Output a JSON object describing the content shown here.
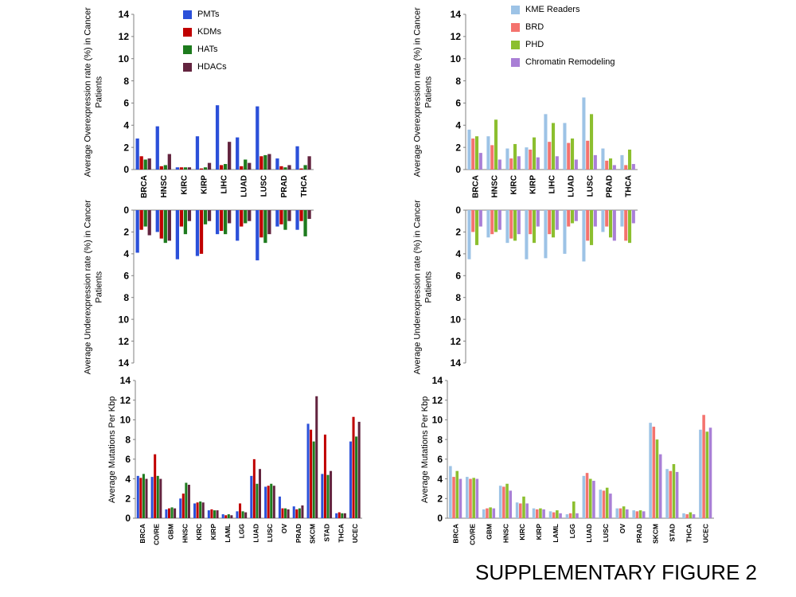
{
  "figure_label": "SUPPLEMENTARY FIGURE 2",
  "chart_data": [
    {
      "id": "overexpression-left",
      "type": "bar",
      "ylabel": "Average Overexpression rate (%) in Cancer Patients",
      "ylim": [
        0,
        14
      ],
      "ytick_step": 2,
      "inverted": false,
      "show_xlabels": true,
      "legend_position": "top-inside",
      "categories": [
        "BRCA",
        "HNSC",
        "KIRC",
        "KIRP",
        "LIHC",
        "LUAD",
        "LUSC",
        "PRAD",
        "THCA"
      ],
      "series": [
        {
          "name": "PMTs",
          "color": "#2B50D9",
          "values": [
            2.8,
            3.9,
            0.2,
            3.0,
            5.8,
            2.9,
            5.7,
            1.0,
            2.1
          ]
        },
        {
          "name": "KDMs",
          "color": "#C00000",
          "values": [
            1.2,
            0.3,
            0.2,
            0.1,
            0.4,
            0.3,
            1.2,
            0.3,
            0.1
          ]
        },
        {
          "name": "HATs",
          "color": "#1E7B1E",
          "values": [
            0.9,
            0.4,
            0.2,
            0.2,
            0.5,
            0.9,
            1.3,
            0.2,
            0.4
          ]
        },
        {
          "name": "HDACs",
          "color": "#63243F",
          "values": [
            1.0,
            1.4,
            0.2,
            0.6,
            2.5,
            0.6,
            1.4,
            0.4,
            1.2
          ]
        }
      ]
    },
    {
      "id": "underexpression-left",
      "type": "bar",
      "ylabel": "Average Underexpression rate (%) in Cancer Patients",
      "ylim": [
        0,
        14
      ],
      "ytick_step": 2,
      "inverted": true,
      "show_xlabels": false,
      "categories": [
        "BRCA",
        "HNSC",
        "KIRC",
        "KIRP",
        "LIHC",
        "LUAD",
        "LUSC",
        "PRAD",
        "THCA"
      ],
      "series": [
        {
          "name": "PMTs",
          "color": "#2B50D9",
          "values": [
            3.9,
            2.0,
            4.5,
            4.2,
            2.2,
            2.8,
            4.6,
            1.5,
            1.8
          ]
        },
        {
          "name": "KDMs",
          "color": "#C00000",
          "values": [
            1.8,
            2.6,
            1.5,
            4.0,
            1.9,
            1.5,
            2.5,
            1.3,
            1.0
          ]
        },
        {
          "name": "HATs",
          "color": "#1E7B1E",
          "values": [
            1.5,
            3.0,
            2.2,
            1.3,
            2.2,
            1.2,
            3.0,
            1.8,
            2.4
          ]
        },
        {
          "name": "HDACs",
          "color": "#63243F",
          "values": [
            2.3,
            2.8,
            1.0,
            1.0,
            1.2,
            1.0,
            2.2,
            1.0,
            0.8
          ]
        }
      ]
    },
    {
      "id": "overexpression-right",
      "type": "bar",
      "ylabel": "Average Overexpression rate (%) in Cancer Patients",
      "ylim": [
        0,
        14
      ],
      "ytick_step": 2,
      "inverted": false,
      "show_xlabels": true,
      "legend_position": "top-inside",
      "categories": [
        "BRCA",
        "HNSC",
        "KIRC",
        "KIRP",
        "LIHC",
        "LUAD",
        "LUSC",
        "PRAD",
        "THCA"
      ],
      "series": [
        {
          "name": "KME Readers",
          "color": "#9DC3E6",
          "values": [
            3.6,
            3.0,
            1.9,
            2.0,
            5.0,
            4.2,
            6.5,
            1.9,
            1.3
          ]
        },
        {
          "name": "BRD",
          "color": "#F4736E",
          "values": [
            2.8,
            2.2,
            1.0,
            1.8,
            2.5,
            2.4,
            2.6,
            0.8,
            0.4
          ]
        },
        {
          "name": "PHD",
          "color": "#8CBF2F",
          "values": [
            3.0,
            4.5,
            2.3,
            2.9,
            4.2,
            2.8,
            5.0,
            1.0,
            1.8
          ]
        },
        {
          "name": "Chromatin Remodeling",
          "color": "#A97FD6",
          "values": [
            1.5,
            0.9,
            1.2,
            1.1,
            1.2,
            0.9,
            1.3,
            0.4,
            0.5
          ]
        }
      ]
    },
    {
      "id": "underexpression-right",
      "type": "bar",
      "ylabel": "Average Underexpression rate (%) in Cancer Patients",
      "ylim": [
        0,
        14
      ],
      "ytick_step": 2,
      "inverted": true,
      "show_xlabels": false,
      "categories": [
        "BRCA",
        "HNSC",
        "KIRC",
        "KIRP",
        "LIHC",
        "LUAD",
        "LUSC",
        "PRAD",
        "THCA"
      ],
      "series": [
        {
          "name": "KME Readers",
          "color": "#9DC3E6",
          "values": [
            4.5,
            2.5,
            3.0,
            4.5,
            4.4,
            4.0,
            4.7,
            2.0,
            1.5
          ]
        },
        {
          "name": "BRD",
          "color": "#F4736E",
          "values": [
            2.0,
            2.2,
            2.6,
            2.2,
            2.2,
            1.5,
            2.8,
            1.5,
            2.8
          ]
        },
        {
          "name": "PHD",
          "color": "#8CBF2F",
          "values": [
            3.2,
            2.0,
            2.8,
            3.0,
            2.5,
            1.2,
            3.2,
            2.5,
            3.0
          ]
        },
        {
          "name": "Chromatin Remodeling",
          "color": "#A97FD6",
          "values": [
            1.5,
            1.8,
            2.2,
            1.5,
            1.8,
            1.0,
            1.5,
            2.8,
            1.2
          ]
        }
      ]
    },
    {
      "id": "mutations-left",
      "type": "bar",
      "ylabel": "Average Mutations Per Kbp",
      "ylim": [
        0,
        14
      ],
      "ytick_step": 2,
      "inverted": false,
      "show_xlabels": true,
      "categories": [
        "BRCA",
        "CO/RE",
        "GBM",
        "HNSC",
        "KIRC",
        "KIRP",
        "LAML",
        "LGG",
        "LUAD",
        "LUSC",
        "OV",
        "PRAD",
        "SKCM",
        "STAD",
        "THCA",
        "UCEC"
      ],
      "series": [
        {
          "name": "PMTs",
          "color": "#2B50D9",
          "values": [
            4.3,
            4.2,
            0.9,
            2.0,
            1.5,
            0.8,
            0.4,
            0.7,
            4.3,
            3.2,
            2.2,
            1.2,
            9.6,
            4.5,
            0.5,
            7.8
          ]
        },
        {
          "name": "KDMs",
          "color": "#C00000",
          "values": [
            4.1,
            6.5,
            1.0,
            2.5,
            1.6,
            0.9,
            0.3,
            1.5,
            6.0,
            3.3,
            1.0,
            0.9,
            9.0,
            8.5,
            0.6,
            10.3
          ]
        },
        {
          "name": "HATs",
          "color": "#1E7B1E",
          "values": [
            4.5,
            4.3,
            1.1,
            3.6,
            1.7,
            0.8,
            0.4,
            0.7,
            3.5,
            3.5,
            1.0,
            1.0,
            7.8,
            4.4,
            0.5,
            8.3
          ]
        },
        {
          "name": "HDACs",
          "color": "#63243F",
          "values": [
            4.0,
            4.0,
            1.0,
            3.4,
            1.6,
            0.8,
            0.3,
            0.6,
            5.0,
            3.3,
            0.9,
            1.3,
            12.4,
            4.8,
            0.5,
            9.8
          ]
        }
      ]
    },
    {
      "id": "mutations-right",
      "type": "bar",
      "ylabel": "Average Mutations Per Kbp",
      "ylim": [
        0,
        14
      ],
      "ytick_step": 2,
      "inverted": false,
      "show_xlabels": true,
      "categories": [
        "BRCA",
        "CO/RE",
        "GBM",
        "HNSC",
        "KIRC",
        "KIRP",
        "LAML",
        "LGG",
        "LUAD",
        "LUSC",
        "OV",
        "PRAD",
        "SKCM",
        "STAD",
        "THCA",
        "UCEC"
      ],
      "series": [
        {
          "name": "KME Readers",
          "color": "#9DC3E6",
          "values": [
            5.3,
            4.2,
            0.9,
            3.3,
            1.6,
            1.0,
            0.7,
            0.4,
            4.3,
            2.9,
            1.0,
            0.8,
            9.7,
            5.0,
            0.5,
            9.0
          ]
        },
        {
          "name": "BRD",
          "color": "#F4736E",
          "values": [
            4.2,
            4.0,
            1.0,
            3.2,
            1.5,
            0.9,
            0.6,
            0.5,
            4.6,
            2.8,
            1.0,
            0.7,
            9.3,
            4.8,
            0.4,
            10.5
          ]
        },
        {
          "name": "PHD",
          "color": "#8CBF2F",
          "values": [
            4.8,
            4.1,
            1.1,
            3.5,
            2.2,
            1.0,
            0.8,
            1.7,
            4.0,
            3.1,
            1.2,
            0.8,
            8.0,
            5.5,
            0.6,
            8.8
          ]
        },
        {
          "name": "Chromatin Remodeling",
          "color": "#A97FD6",
          "values": [
            4.0,
            4.0,
            1.0,
            2.8,
            1.5,
            0.9,
            0.5,
            0.5,
            3.8,
            2.5,
            0.9,
            0.7,
            6.5,
            4.7,
            0.4,
            9.2
          ]
        }
      ]
    }
  ]
}
